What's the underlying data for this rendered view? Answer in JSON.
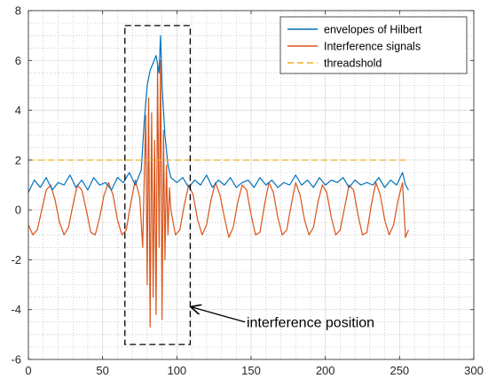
{
  "chart_data": {
    "type": "line",
    "title": "",
    "xlabel": "",
    "ylabel": "",
    "xlim": [
      0,
      300
    ],
    "ylim": [
      -6,
      8
    ],
    "xticks": [
      0,
      50,
      100,
      150,
      200,
      250,
      300
    ],
    "yticks": [
      -6,
      -4,
      -2,
      0,
      2,
      4,
      6,
      8
    ],
    "xtick_labels": [
      "0",
      "50",
      "100",
      "150",
      "200",
      "250",
      "300"
    ],
    "ytick_labels": [
      "-6",
      "-4",
      "-2",
      "0",
      "2",
      "4",
      "6",
      "8"
    ],
    "grid": true,
    "minor_grid": true,
    "legend_position": "top-right",
    "colors": {
      "envelope": "#0072bd",
      "interference": "#d95319",
      "threshold": "#edb120",
      "annotation": "#000000"
    },
    "series": [
      {
        "name": "envelopes of Hilbert",
        "style": "solid",
        "x": [
          0,
          4,
          8,
          12,
          16,
          20,
          24,
          28,
          32,
          36,
          40,
          44,
          48,
          52,
          56,
          60,
          64,
          68,
          72,
          76,
          78,
          80,
          82,
          84,
          86,
          88,
          89,
          90,
          92,
          94,
          96,
          100,
          104,
          108,
          112,
          116,
          120,
          124,
          128,
          132,
          136,
          140,
          144,
          148,
          152,
          156,
          160,
          164,
          168,
          172,
          176,
          180,
          184,
          188,
          192,
          196,
          200,
          204,
          208,
          212,
          216,
          220,
          224,
          228,
          232,
          236,
          240,
          244,
          248,
          252,
          254,
          256
        ],
        "y": [
          0.7,
          1.2,
          0.9,
          1.3,
          0.8,
          1.1,
          1.0,
          1.4,
          0.9,
          1.2,
          0.8,
          1.3,
          1.0,
          1.1,
          0.8,
          1.3,
          1.1,
          1.5,
          1.0,
          1.6,
          3.5,
          5.0,
          5.6,
          5.9,
          6.2,
          5.5,
          7.0,
          5.0,
          3.0,
          1.8,
          1.3,
          1.1,
          1.3,
          0.9,
          1.2,
          1.0,
          1.4,
          0.9,
          1.2,
          1.0,
          1.3,
          0.9,
          1.1,
          1.2,
          0.9,
          1.3,
          1.0,
          1.2,
          0.9,
          1.1,
          1.0,
          1.4,
          1.0,
          1.2,
          0.9,
          1.3,
          1.0,
          1.2,
          1.1,
          1.3,
          0.9,
          1.2,
          1.0,
          1.1,
          1.0,
          1.3,
          0.9,
          1.2,
          1.0,
          1.5,
          1.0,
          0.8
        ]
      },
      {
        "name": "Interference signals",
        "style": "solid",
        "x": [
          0,
          3,
          6,
          9,
          12,
          15,
          18,
          21,
          24,
          27,
          30,
          33,
          36,
          39,
          42,
          45,
          48,
          51,
          54,
          57,
          60,
          63,
          66,
          69,
          72,
          75,
          77,
          79,
          80,
          81,
          82,
          83,
          84,
          85,
          86,
          87,
          88,
          89,
          90,
          91,
          92,
          93,
          94,
          95,
          96,
          99,
          102,
          105,
          108,
          111,
          114,
          117,
          120,
          123,
          126,
          129,
          132,
          135,
          138,
          141,
          144,
          147,
          150,
          153,
          156,
          159,
          162,
          165,
          168,
          171,
          174,
          177,
          180,
          183,
          186,
          189,
          192,
          195,
          198,
          201,
          204,
          207,
          210,
          213,
          216,
          219,
          222,
          225,
          228,
          231,
          234,
          237,
          240,
          243,
          246,
          249,
          252,
          254,
          256
        ],
        "y": [
          -0.6,
          -1.0,
          -0.8,
          0.0,
          0.8,
          1.0,
          0.4,
          -0.5,
          -1.0,
          -0.7,
          0.2,
          1.0,
          0.8,
          0.0,
          -0.9,
          -1.0,
          -0.3,
          0.6,
          1.1,
          0.6,
          -0.4,
          -1.0,
          -0.8,
          0.3,
          1.2,
          0.5,
          -1.5,
          3.8,
          -3.0,
          4.5,
          -4.7,
          3.9,
          -3.5,
          2.8,
          -4.2,
          5.9,
          -1.5,
          6.0,
          -4.4,
          3.2,
          -2.0,
          1.8,
          -1.0,
          0.9,
          0.0,
          -1.0,
          -0.8,
          0.2,
          1.0,
          0.6,
          -0.4,
          -1.0,
          -0.6,
          0.4,
          1.1,
          0.6,
          -0.3,
          -1.1,
          -0.7,
          0.3,
          1.0,
          0.8,
          -0.2,
          -1.0,
          -0.9,
          0.2,
          1.1,
          0.7,
          -0.3,
          -1.0,
          -0.8,
          0.2,
          1.1,
          0.6,
          -0.4,
          -1.0,
          -0.7,
          0.3,
          1.0,
          0.7,
          -0.3,
          -1.0,
          -0.8,
          0.1,
          1.0,
          0.8,
          -0.2,
          -1.0,
          -0.9,
          0.2,
          1.1,
          0.6,
          -0.4,
          -1.0,
          -0.6,
          0.4,
          1.1,
          -1.1,
          -0.8
        ]
      },
      {
        "name": "threadshold",
        "style": "dashed",
        "x": [
          0,
          256
        ],
        "y": [
          2,
          2
        ]
      }
    ],
    "annotations": [
      {
        "text": "interference position",
        "box_x": [
          65,
          109
        ],
        "box_y": [
          -5.4,
          7.4
        ],
        "text_anchor_x": 147,
        "text_anchor_y": -4.7,
        "arrow_from": [
          146,
          -4.5
        ],
        "arrow_to": [
          110,
          -3.9
        ]
      }
    ]
  }
}
